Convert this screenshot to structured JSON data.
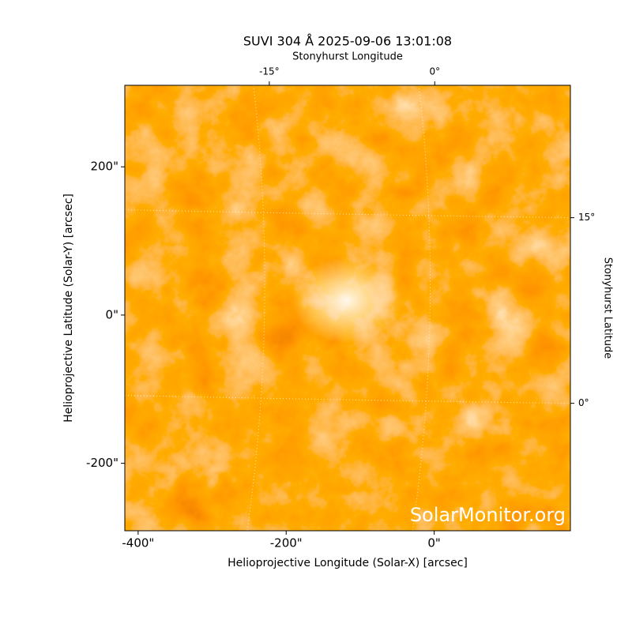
{
  "chart_data": {
    "type": "image",
    "title": "SUVI 304 Å 2025-09-06 13:01:08",
    "xlabel": "Helioprojective Longitude (Solar-X) [arcsec]",
    "ylabel": "Helioprojective Latitude (Solar-Y) [arcsec]",
    "x2label": "Stonyhurst Longitude",
    "y2label": "Stonyhurst Latitude",
    "xlim": [
      -418,
      184
    ],
    "ylim": [
      -291,
      310
    ],
    "xticks": [
      {
        "value": -400,
        "label": "-400\""
      },
      {
        "value": -200,
        "label": "-200\""
      },
      {
        "value": 0,
        "label": "0\""
      }
    ],
    "yticks": [
      {
        "value": -200,
        "label": "-200\""
      },
      {
        "value": 0,
        "label": "0\""
      },
      {
        "value": 200,
        "label": "200\""
      }
    ],
    "x2lim": [
      -28.1,
      12.3
    ],
    "x2ticks": [
      {
        "value": -15,
        "label": "-15°"
      },
      {
        "value": 0,
        "label": "0°"
      }
    ],
    "y2lim": [
      -10.3,
      25.7
    ],
    "y2ticks": [
      {
        "value": 0,
        "label": "0°"
      },
      {
        "value": 15,
        "label": "15°"
      }
    ],
    "grid": true,
    "watermark": "SolarMonitor.org"
  }
}
